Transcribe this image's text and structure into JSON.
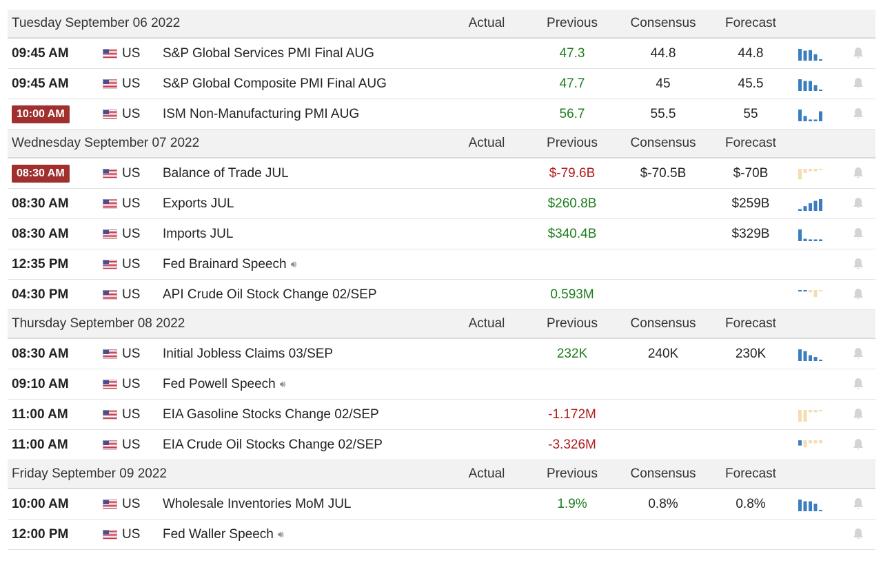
{
  "columns": {
    "actual": "Actual",
    "previous": "Previous",
    "consensus": "Consensus",
    "forecast": "Forecast"
  },
  "colors": {
    "bar_blue": "#3a7ebf",
    "bar_tan": "#f3ddb1",
    "positive": "#1c7d1c",
    "negative": "#b21a1a",
    "badge": "#a0302e"
  },
  "days": [
    {
      "label": "Tuesday September 06 2022",
      "events": [
        {
          "time": "09:45 AM",
          "highlight": false,
          "country": "US",
          "event": "S&P Global Services PMI Final AUG",
          "speech": false,
          "actual": "",
          "previous": "47.3",
          "previous_tone": "pos",
          "consensus": "44.8",
          "forecast": "44.8",
          "chart": "blue",
          "bars": [
            1,
            0.85,
            0.9,
            0.55,
            0.12
          ]
        },
        {
          "time": "09:45 AM",
          "highlight": false,
          "country": "US",
          "event": "S&P Global Composite PMI Final AUG",
          "speech": false,
          "actual": "",
          "previous": "47.7",
          "previous_tone": "pos",
          "consensus": "45",
          "forecast": "45.5",
          "chart": "blue",
          "bars": [
            1,
            0.85,
            0.85,
            0.5,
            0.12
          ]
        },
        {
          "time": "10:00 AM",
          "highlight": true,
          "country": "US",
          "event": "ISM Non-Manufacturing PMI AUG",
          "speech": false,
          "actual": "",
          "previous": "56.7",
          "previous_tone": "pos",
          "consensus": "55.5",
          "forecast": "55",
          "chart": "blue",
          "bars": [
            1,
            0.45,
            0.15,
            0.15,
            0.85
          ]
        }
      ]
    },
    {
      "label": "Wednesday September 07 2022",
      "events": [
        {
          "time": "08:30 AM",
          "highlight": true,
          "country": "US",
          "event": "Balance of Trade JUL",
          "speech": false,
          "actual": "",
          "previous": "$-79.6B",
          "previous_tone": "neg",
          "consensus": "$-70.5B",
          "forecast": "$-70B",
          "chart": "tan",
          "bars": [
            -0.9,
            -0.35,
            -0.2,
            -0.2,
            -0.12
          ]
        },
        {
          "time": "08:30 AM",
          "highlight": false,
          "country": "US",
          "event": "Exports JUL",
          "speech": false,
          "actual": "",
          "previous": "$260.8B",
          "previous_tone": "pos",
          "consensus": "",
          "forecast": "$259B",
          "chart": "blue",
          "bars": [
            0.15,
            0.4,
            0.65,
            0.85,
            1
          ]
        },
        {
          "time": "08:30 AM",
          "highlight": false,
          "country": "US",
          "event": "Imports JUL",
          "speech": false,
          "actual": "",
          "previous": "$340.4B",
          "previous_tone": "pos",
          "consensus": "",
          "forecast": "$329B",
          "chart": "blue",
          "bars": [
            1,
            0.2,
            0.15,
            0.15,
            0.15
          ]
        },
        {
          "time": "12:35 PM",
          "highlight": false,
          "country": "US",
          "event": "Fed Brainard Speech",
          "speech": true,
          "actual": "",
          "previous": "",
          "previous_tone": "",
          "consensus": "",
          "forecast": "",
          "chart": "none",
          "bars": []
        },
        {
          "time": "04:30 PM",
          "highlight": false,
          "country": "US",
          "event": "API Crude Oil Stock Change 02/SEP",
          "speech": false,
          "actual": "",
          "previous": "0.593M",
          "previous_tone": "pos",
          "consensus": "",
          "forecast": "",
          "chart": "mixed",
          "bars": [
            0.12,
            0.12,
            -0.2,
            -0.6,
            -0.12
          ]
        }
      ]
    },
    {
      "label": "Thursday September 08 2022",
      "events": [
        {
          "time": "08:30 AM",
          "highlight": false,
          "country": "US",
          "event": "Initial Jobless Claims 03/SEP",
          "speech": false,
          "actual": "",
          "previous": "232K",
          "previous_tone": "pos",
          "consensus": "240K",
          "forecast": "230K",
          "chart": "blue",
          "bars": [
            1,
            0.85,
            0.5,
            0.35,
            0.12
          ]
        },
        {
          "time": "09:10 AM",
          "highlight": false,
          "country": "US",
          "event": "Fed Powell Speech",
          "speech": true,
          "actual": "",
          "previous": "",
          "previous_tone": "",
          "consensus": "",
          "forecast": "",
          "chart": "none",
          "bars": []
        },
        {
          "time": "11:00 AM",
          "highlight": false,
          "country": "US",
          "event": "EIA Gasoline Stocks Change 02/SEP",
          "speech": false,
          "actual": "",
          "previous": "-1.172M",
          "previous_tone": "neg",
          "consensus": "",
          "forecast": "",
          "chart": "tan",
          "bars": [
            -1,
            -1,
            -0.2,
            -0.2,
            -0.12
          ]
        },
        {
          "time": "11:00 AM",
          "highlight": false,
          "country": "US",
          "event": "EIA Crude Oil Stocks Change 02/SEP",
          "speech": false,
          "actual": "",
          "previous": "-3.326M",
          "previous_tone": "neg",
          "consensus": "",
          "forecast": "",
          "chart": "mixed",
          "bars": [
            0.45,
            -0.6,
            -0.25,
            -0.25,
            -0.25
          ]
        }
      ]
    },
    {
      "label": "Friday September 09 2022",
      "events": [
        {
          "time": "10:00 AM",
          "highlight": false,
          "country": "US",
          "event": "Wholesale Inventories MoM JUL",
          "speech": false,
          "actual": "",
          "previous": "1.9%",
          "previous_tone": "pos",
          "consensus": "0.8%",
          "forecast": "0.8%",
          "chart": "blue",
          "bars": [
            1,
            0.85,
            0.85,
            0.65,
            0.12
          ]
        },
        {
          "time": "12:00 PM",
          "highlight": false,
          "country": "US",
          "event": "Fed Waller Speech",
          "speech": true,
          "actual": "",
          "previous": "",
          "previous_tone": "",
          "consensus": "",
          "forecast": "",
          "chart": "none",
          "bars": []
        }
      ]
    }
  ]
}
